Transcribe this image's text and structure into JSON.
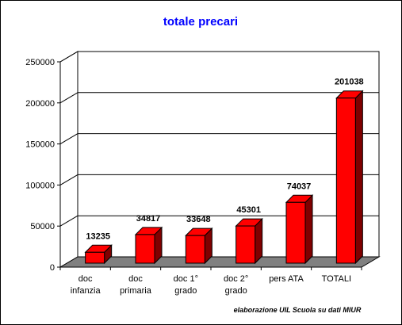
{
  "chart_data": {
    "type": "bar",
    "title": "totale precari",
    "categories": [
      [
        "doc",
        "infanzia"
      ],
      [
        "doc",
        "primaria"
      ],
      [
        "doc 1°",
        "grado"
      ],
      [
        "doc 2°",
        "grado"
      ],
      [
        "pers ATA"
      ],
      [
        "TOTALI"
      ]
    ],
    "values": [
      13235,
      34817,
      33648,
      45301,
      74037,
      201038
    ],
    "value_labels": [
      "13235",
      "34817",
      "33648",
      "45301",
      "74037",
      "201038"
    ],
    "ylim": [
      0,
      250000
    ],
    "yticks": [
      0,
      50000,
      100000,
      150000,
      200000,
      250000
    ],
    "ytick_labels": [
      "0",
      "50000",
      "100000",
      "150000",
      "200000",
      "250000"
    ],
    "grid": true,
    "style": "3d",
    "bar_color": "#ff0000",
    "bar_side_color": "#800000",
    "floor_color": "#808080",
    "title_color": "#0000ff",
    "annotation": "elaborazione UIL Scuola su dati MIUR"
  }
}
